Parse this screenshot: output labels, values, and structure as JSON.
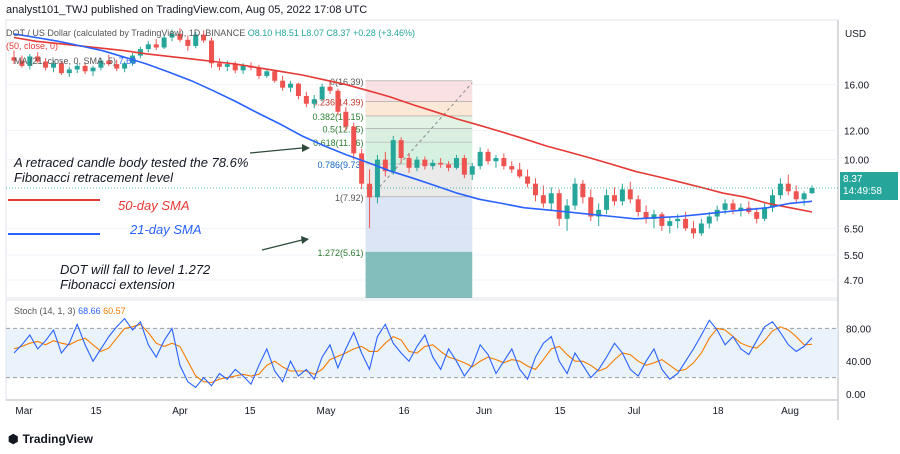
{
  "header": {
    "publisher": "analyst101_TWJ published on TradingView.com, Aug 05, 2022 17:08 UTC"
  },
  "symbol": {
    "pair": "DOT / US Dollar (calculated by TradingView), 1D, BINANCE",
    "open": "O8.10",
    "high": "H8.51",
    "low": "L8.07",
    "close": "C8.37",
    "change": "+0.28 (+3.46%)"
  },
  "ma_lines": {
    "ma50_label": "(50, close, 0)",
    "ma21_label": "MA (21, close, 0, SMA, 5)",
    "ma21_value": "7.68"
  },
  "annotations": {
    "retrace": "A retraced candle body tested the 78.6% Fibonacci retracement level",
    "forecast": "DOT will fall to level 1.272 Fibonacci extension",
    "sma50": "50-day SMA",
    "sma21": "21-day SMA"
  },
  "price_axis": {
    "currency": "USD",
    "current_price": "8.37",
    "countdown": "14:49:58"
  },
  "stoch": {
    "label": "Stoch (14, 1, 3)",
    "k_value": "68.66",
    "d_value": "60.57"
  },
  "brand": {
    "logo_text": "TradingView"
  },
  "colors": {
    "up": "#26a69a",
    "down": "#ef5350",
    "sma50": "#e53935",
    "sma21": "#2962ff",
    "stoch_d": "#f57c00",
    "fib_top": "#f8d7da",
    "fib_mid": "#d9efd9",
    "fib_lower": "#c8ecd6",
    "fib_extension": "#6fb3b0"
  },
  "chart_data": {
    "type": "candlestick",
    "price_axis_ticks": [
      16.0,
      12.0,
      10.0,
      8.37,
      6.5,
      5.5,
      4.7
    ],
    "price_axis_labels": [
      "16.00",
      "12.00",
      "10.00",
      "8.37",
      "6.50",
      "5.50",
      "4.70"
    ],
    "stoch_axis_labels": [
      "80.00",
      "40.00",
      "0.00"
    ],
    "stoch_axis_values": [
      80,
      40,
      0
    ],
    "stoch_band": [
      20,
      80
    ],
    "x_labels": [
      "Mar",
      "15",
      "Apr",
      "15",
      "May",
      "16",
      "Jun",
      "15",
      "Jul",
      "18",
      "Aug"
    ],
    "fib_levels": [
      {
        "label": "0(16.39)",
        "ratio": 0,
        "price": 16.39
      },
      {
        "label": "0.236(14.39)",
        "ratio": 0.236,
        "price": 14.39
      },
      {
        "label": "0.382(13.15)",
        "ratio": 0.382,
        "price": 13.15
      },
      {
        "label": "0.5(12.15)",
        "ratio": 0.5,
        "price": 12.15
      },
      {
        "label": "0.618(11.16)",
        "ratio": 0.618,
        "price": 11.16
      },
      {
        "label": "0.786(9.73)",
        "ratio": 0.786,
        "price": 9.73
      },
      {
        "label": "1(7.92)",
        "ratio": 1,
        "price": 7.92
      },
      {
        "label": "1.272(5.61)",
        "ratio": 1.272,
        "price": 5.61
      }
    ],
    "candles": [
      [
        19.0,
        19.8,
        18.2,
        18.6
      ],
      [
        18.6,
        19.2,
        17.8,
        18.0
      ],
      [
        18.0,
        19.4,
        17.6,
        19.1
      ],
      [
        19.1,
        19.6,
        18.3,
        18.5
      ],
      [
        18.5,
        18.9,
        17.5,
        17.8
      ],
      [
        17.8,
        18.6,
        17.3,
        18.3
      ],
      [
        18.3,
        18.5,
        17.0,
        17.2
      ],
      [
        17.2,
        17.9,
        16.8,
        17.6
      ],
      [
        17.6,
        18.3,
        17.2,
        18.0
      ],
      [
        18.0,
        18.4,
        17.1,
        17.4
      ],
      [
        17.4,
        18.0,
        16.9,
        17.8
      ],
      [
        17.8,
        18.9,
        17.5,
        18.6
      ],
      [
        18.6,
        19.3,
        18.0,
        18.2
      ],
      [
        18.2,
        18.7,
        17.4,
        17.7
      ],
      [
        17.7,
        18.5,
        17.3,
        18.3
      ],
      [
        18.3,
        19.5,
        18.0,
        19.2
      ],
      [
        19.2,
        20.3,
        18.9,
        20.0
      ],
      [
        20.0,
        21.0,
        19.6,
        20.6
      ],
      [
        20.6,
        21.3,
        19.9,
        20.2
      ],
      [
        20.2,
        21.9,
        20.0,
        21.5
      ],
      [
        21.5,
        22.6,
        21.0,
        22.0
      ],
      [
        22.0,
        22.8,
        20.9,
        21.2
      ],
      [
        21.2,
        21.8,
        19.8,
        20.4
      ],
      [
        20.4,
        22.3,
        20.1,
        21.9
      ],
      [
        21.9,
        22.5,
        20.8,
        21.1
      ],
      [
        21.1,
        21.5,
        17.8,
        18.3
      ],
      [
        18.3,
        18.9,
        17.5,
        17.9
      ],
      [
        17.9,
        18.6,
        17.4,
        18.2
      ],
      [
        18.2,
        18.5,
        17.2,
        17.5
      ],
      [
        17.5,
        18.3,
        17.1,
        18.0
      ],
      [
        18.0,
        18.4,
        17.5,
        17.8
      ],
      [
        17.8,
        18.1,
        16.6,
        16.9
      ],
      [
        16.9,
        17.7,
        16.7,
        17.4
      ],
      [
        17.4,
        17.6,
        16.2,
        16.4
      ],
      [
        16.4,
        16.9,
        15.4,
        15.7
      ],
      [
        15.7,
        16.4,
        15.3,
        16.1
      ],
      [
        16.1,
        16.2,
        14.6,
        14.9
      ],
      [
        14.9,
        15.3,
        13.9,
        14.2
      ],
      [
        14.2,
        15.0,
        13.8,
        14.6
      ],
      [
        14.6,
        16.1,
        14.4,
        15.8
      ],
      [
        15.8,
        16.4,
        15.1,
        15.4
      ],
      [
        15.4,
        15.6,
        13.2,
        13.5
      ],
      [
        13.5,
        13.9,
        12.0,
        12.3
      ],
      [
        12.3,
        12.6,
        10.0,
        10.4
      ],
      [
        10.4,
        10.7,
        8.3,
        8.6
      ],
      [
        8.6,
        9.4,
        6.5,
        7.9
      ],
      [
        7.9,
        10.3,
        7.6,
        10.0
      ],
      [
        10.0,
        10.5,
        9.0,
        9.3
      ],
      [
        9.3,
        11.6,
        9.1,
        11.3
      ],
      [
        11.3,
        11.5,
        9.8,
        10.1
      ],
      [
        10.1,
        10.4,
        9.2,
        9.5
      ],
      [
        9.5,
        10.2,
        9.3,
        10.0
      ],
      [
        10.0,
        10.2,
        9.4,
        9.6
      ],
      [
        9.6,
        10.0,
        9.4,
        9.8
      ],
      [
        9.8,
        10.1,
        9.5,
        9.7
      ],
      [
        9.7,
        9.9,
        9.3,
        9.5
      ],
      [
        9.5,
        10.3,
        9.4,
        10.1
      ],
      [
        10.1,
        10.3,
        8.9,
        9.1
      ],
      [
        9.1,
        9.8,
        8.8,
        9.6
      ],
      [
        9.6,
        10.8,
        9.4,
        10.5
      ],
      [
        10.5,
        10.7,
        9.7,
        9.9
      ],
      [
        9.9,
        10.3,
        9.5,
        10.1
      ],
      [
        10.1,
        10.4,
        9.4,
        9.6
      ],
      [
        9.6,
        9.9,
        9.2,
        9.4
      ],
      [
        9.4,
        9.8,
        8.9,
        9.0
      ],
      [
        9.0,
        9.4,
        8.4,
        8.6
      ],
      [
        8.6,
        8.9,
        7.7,
        8.0
      ],
      [
        8.0,
        8.5,
        7.4,
        7.6
      ],
      [
        7.6,
        8.4,
        7.3,
        8.1
      ],
      [
        8.1,
        8.3,
        6.6,
        6.9
      ],
      [
        6.9,
        7.8,
        6.4,
        7.5
      ],
      [
        7.5,
        8.9,
        7.3,
        8.6
      ],
      [
        8.6,
        8.8,
        7.6,
        7.9
      ],
      [
        7.9,
        8.3,
        6.8,
        7.0
      ],
      [
        7.0,
        7.6,
        6.6,
        7.3
      ],
      [
        7.3,
        8.3,
        7.1,
        8.0
      ],
      [
        8.0,
        8.4,
        7.5,
        7.7
      ],
      [
        7.7,
        8.6,
        7.5,
        8.3
      ],
      [
        8.3,
        8.7,
        7.6,
        7.8
      ],
      [
        7.8,
        8.0,
        7.0,
        7.2
      ],
      [
        7.2,
        7.5,
        6.7,
        6.9
      ],
      [
        6.9,
        7.3,
        6.5,
        7.1
      ],
      [
        7.1,
        7.2,
        6.4,
        6.6
      ],
      [
        6.6,
        7.0,
        6.3,
        6.8
      ],
      [
        6.8,
        7.1,
        6.5,
        6.9
      ],
      [
        6.9,
        7.2,
        6.4,
        6.5
      ],
      [
        6.5,
        6.8,
        6.1,
        6.3
      ],
      [
        6.3,
        6.9,
        6.2,
        6.7
      ],
      [
        6.7,
        7.2,
        6.5,
        7.0
      ],
      [
        7.0,
        7.5,
        6.8,
        7.3
      ],
      [
        7.3,
        7.8,
        7.1,
        7.6
      ],
      [
        7.6,
        7.8,
        7.1,
        7.3
      ],
      [
        7.3,
        7.6,
        7.0,
        7.4
      ],
      [
        7.4,
        7.7,
        7.1,
        7.2
      ],
      [
        7.2,
        7.4,
        6.7,
        6.9
      ],
      [
        6.9,
        7.6,
        6.8,
        7.4
      ],
      [
        7.4,
        8.3,
        7.2,
        8.0
      ],
      [
        8.0,
        8.9,
        7.8,
        8.6
      ],
      [
        8.6,
        9.1,
        8.0,
        8.2
      ],
      [
        8.2,
        8.5,
        7.6,
        7.8
      ],
      [
        7.8,
        8.2,
        7.5,
        8.09
      ],
      [
        8.1,
        8.51,
        8.07,
        8.37
      ]
    ],
    "sma50": [
      21.5,
      21.0,
      20.7,
      20.4,
      20.1,
      19.8,
      19.4,
      19.1,
      18.8,
      18.5,
      18.2,
      17.8,
      17.4,
      17.0,
      16.5,
      16.0,
      15.4,
      14.8,
      14.1,
      13.5,
      12.9,
      12.4,
      11.9,
      11.4,
      10.9,
      10.5,
      10.1,
      9.7,
      9.3,
      9.0,
      8.7,
      8.4,
      8.1,
      7.9,
      7.6,
      7.4,
      7.2
    ],
    "sma21": [
      22.0,
      21.5,
      21.0,
      20.4,
      19.8,
      19.0,
      18.2,
      17.3,
      16.4,
      15.4,
      14.4,
      13.4,
      12.5,
      11.6,
      10.9,
      10.3,
      9.8,
      9.3,
      8.9,
      8.5,
      8.1,
      7.8,
      7.6,
      7.4,
      7.3,
      7.2,
      7.1,
      7.0,
      6.9,
      6.95,
      7.0,
      7.1,
      7.2,
      7.3,
      7.4,
      7.6,
      7.7
    ],
    "stoch_k": [
      50,
      60,
      72,
      55,
      65,
      78,
      50,
      62,
      85,
      60,
      40,
      55,
      70,
      82,
      92,
      78,
      88,
      60,
      45,
      65,
      80,
      35,
      15,
      8,
      20,
      10,
      25,
      18,
      30,
      22,
      12,
      35,
      55,
      28,
      15,
      40,
      22,
      30,
      18,
      45,
      60,
      32,
      55,
      75,
      50,
      30,
      70,
      85,
      62,
      50,
      40,
      58,
      72,
      45,
      30,
      55,
      40,
      22,
      35,
      60,
      48,
      25,
      40,
      55,
      30,
      18,
      45,
      62,
      70,
      40,
      25,
      50,
      35,
      20,
      30,
      45,
      62,
      50,
      30,
      22,
      40,
      55,
      30,
      18,
      25,
      40,
      55,
      72,
      90,
      78,
      60,
      70,
      55,
      48,
      65,
      82,
      88,
      75,
      60,
      52,
      58,
      68.66
    ],
    "stoch_d": [
      55,
      58,
      62,
      64,
      60,
      65,
      62,
      60,
      65,
      68,
      60,
      52,
      56,
      68,
      80,
      82,
      85,
      75,
      62,
      58,
      62,
      58,
      40,
      22,
      15,
      14,
      18,
      20,
      22,
      24,
      22,
      24,
      35,
      40,
      33,
      28,
      28,
      28,
      24,
      30,
      42,
      46,
      50,
      55,
      58,
      52,
      52,
      62,
      70,
      66,
      52,
      50,
      58,
      60,
      52,
      45,
      42,
      38,
      33,
      40,
      45,
      42,
      38,
      42,
      40,
      34,
      30,
      42,
      55,
      58,
      48,
      40,
      40,
      35,
      28,
      32,
      42,
      50,
      48,
      40,
      35,
      38,
      42,
      35,
      28,
      30,
      38,
      50,
      68,
      80,
      78,
      70,
      62,
      58,
      56,
      65,
      77,
      82,
      78,
      70,
      60,
      60.57
    ]
  }
}
